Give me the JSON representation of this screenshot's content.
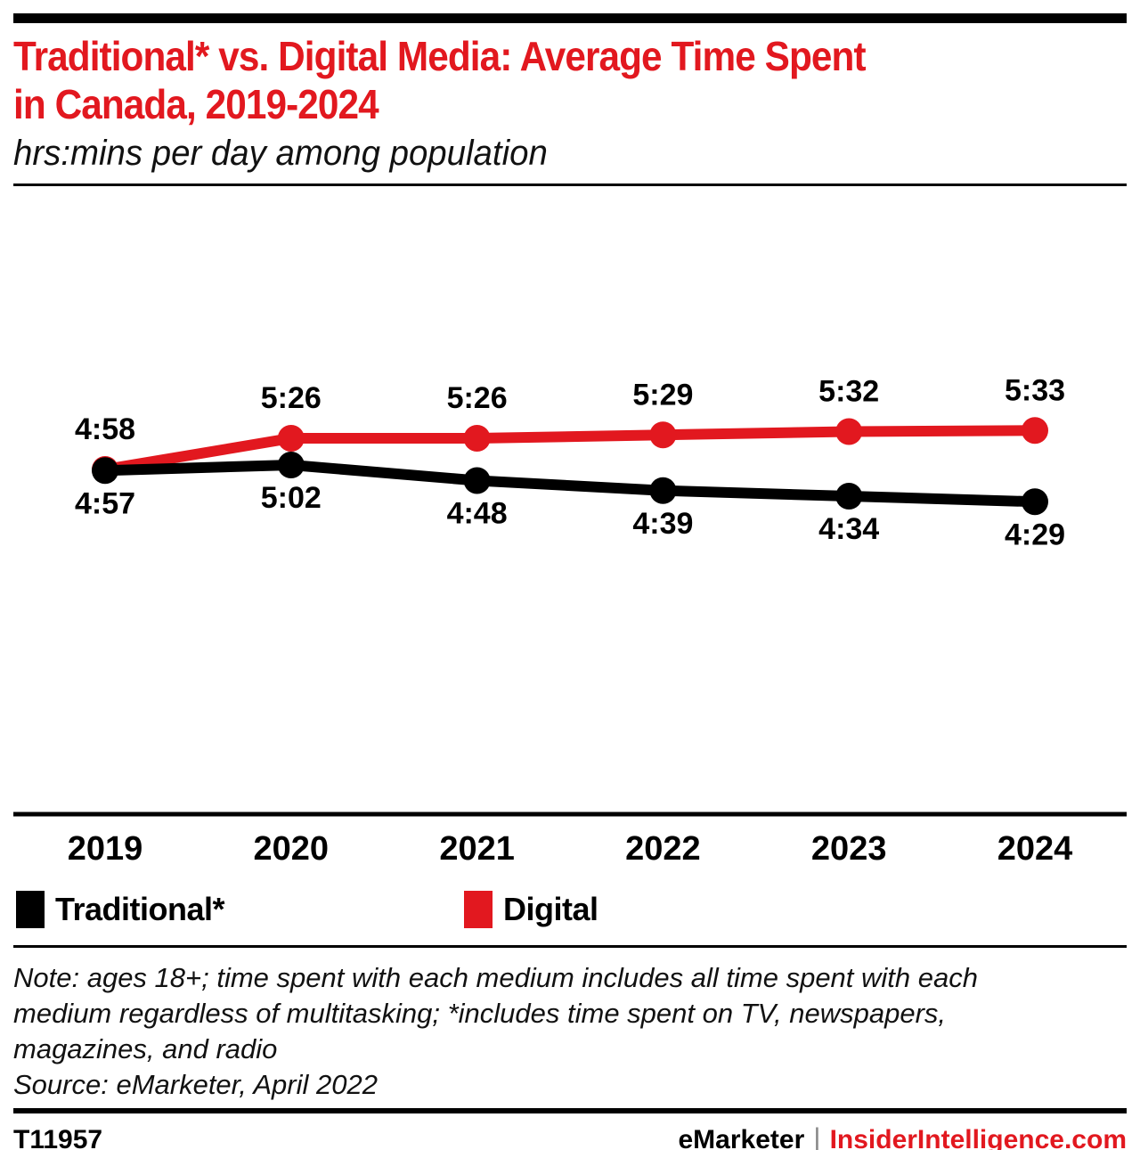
{
  "colors": {
    "accent_red": "#e2181f",
    "black": "#000000",
    "divider_gray": "#8a8a8a"
  },
  "header": {
    "title_line1": "Traditional* vs. Digital Media: Average Time Spent",
    "title_line2": "in Canada, 2019-2024",
    "subtitle": "hrs:mins per day among population"
  },
  "chart_data": {
    "type": "line",
    "title": "Traditional* vs. Digital Media: Average Time Spent in Canada, 2019-2024",
    "subtitle": "hrs:mins per day among population",
    "value_format": "h:mm per day",
    "categories": [
      "2019",
      "2020",
      "2021",
      "2022",
      "2023",
      "2024"
    ],
    "series": [
      {
        "name": "Digital",
        "color": "#e2181f",
        "labels": [
          "4:58",
          "5:26",
          "5:26",
          "5:29",
          "5:32",
          "5:33"
        ],
        "values_minutes": [
          298,
          326,
          326,
          329,
          332,
          333
        ],
        "label_position": "above"
      },
      {
        "name": "Traditional*",
        "color": "#000000",
        "labels": [
          "4:57",
          "5:02",
          "4:48",
          "4:39",
          "4:34",
          "4:29"
        ],
        "values_minutes": [
          297,
          302,
          288,
          279,
          274,
          269
        ],
        "label_position": "below"
      }
    ],
    "y_axis_visible": false,
    "grid": false,
    "legend_position": "bottom"
  },
  "legend": {
    "items": [
      {
        "label": "Traditional*",
        "color": "#000000"
      },
      {
        "label": "Digital",
        "color": "#e2181f"
      }
    ]
  },
  "notes": {
    "lines": [
      "Note: ages 18+; time spent with each medium includes all time spent with each",
      "medium regardless of multitasking; *includes time spent on TV, newspapers,",
      "magazines, and radio"
    ],
    "source": "Source: eMarketer, April 2022"
  },
  "footer": {
    "chart_id": "T11957",
    "brand": "eMarketer",
    "divider": "|",
    "site": "InsiderIntelligence.com"
  }
}
